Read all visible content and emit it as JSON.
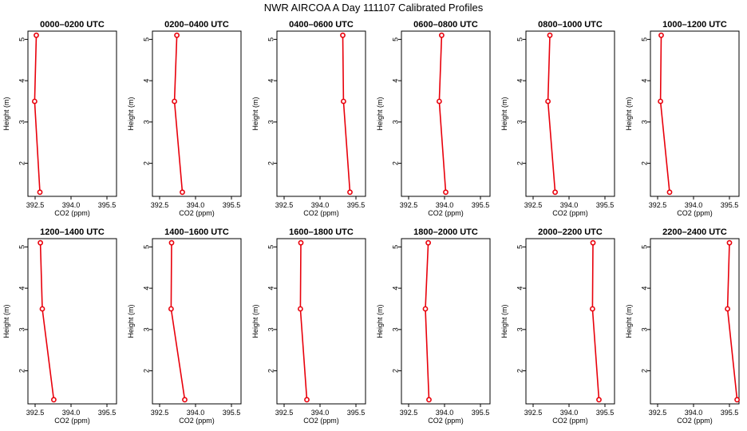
{
  "title": "NWR AIRCOA A  Day 111107  Calibrated Profiles",
  "style": {
    "line_color": "#e8000b",
    "axis_color": "#000000"
  },
  "chart_data": [
    {
      "type": "line",
      "title": "0000–0200 UTC",
      "xlabel": "CO2 (ppm)",
      "ylabel": "Height (m)",
      "xlim": [
        392.2,
        395.9
      ],
      "ylim": [
        1.2,
        5.2
      ],
      "xticks": [
        "392.5",
        "394.0",
        "395.5"
      ],
      "yticks": [
        "2",
        "3",
        "4",
        "5"
      ],
      "grid": false,
      "series": [
        {
          "x": [
            392.55,
            392.48,
            392.7
          ],
          "y": [
            5.1,
            3.5,
            1.3
          ]
        }
      ]
    },
    {
      "type": "line",
      "title": "0200–0400 UTC",
      "xlabel": "CO2 (ppm)",
      "ylabel": "Height (m)",
      "xlim": [
        392.2,
        395.9
      ],
      "ylim": [
        1.2,
        5.2
      ],
      "xticks": [
        "392.5",
        "394.0",
        "395.5"
      ],
      "yticks": [
        "2",
        "3",
        "4",
        "5"
      ],
      "grid": false,
      "series": [
        {
          "x": [
            393.22,
            393.12,
            393.45
          ],
          "y": [
            5.1,
            3.5,
            1.3
          ]
        }
      ]
    },
    {
      "type": "line",
      "title": "0400–0600 UTC",
      "xlabel": "CO2 (ppm)",
      "ylabel": "Height (m)",
      "xlim": [
        392.2,
        395.9
      ],
      "ylim": [
        1.2,
        5.2
      ],
      "xticks": [
        "392.5",
        "394.0",
        "395.5"
      ],
      "yticks": [
        "2",
        "3",
        "4",
        "5"
      ],
      "grid": false,
      "series": [
        {
          "x": [
            394.95,
            394.98,
            395.25
          ],
          "y": [
            5.1,
            3.5,
            1.3
          ]
        }
      ]
    },
    {
      "type": "line",
      "title": "0600–0800 UTC",
      "xlabel": "CO2 (ppm)",
      "ylabel": "Height (m)",
      "xlim": [
        392.2,
        395.9
      ],
      "ylim": [
        1.2,
        5.2
      ],
      "xticks": [
        "392.5",
        "394.0",
        "395.5"
      ],
      "yticks": [
        "2",
        "3",
        "4",
        "5"
      ],
      "grid": false,
      "series": [
        {
          "x": [
            393.88,
            393.78,
            394.05
          ],
          "y": [
            5.1,
            3.5,
            1.3
          ]
        }
      ]
    },
    {
      "type": "line",
      "title": "0800–1000 UTC",
      "xlabel": "CO2 (ppm)",
      "ylabel": "Height (m)",
      "xlim": [
        392.2,
        395.9
      ],
      "ylim": [
        1.2,
        5.2
      ],
      "xticks": [
        "392.5",
        "394.0",
        "395.5"
      ],
      "yticks": [
        "2",
        "3",
        "4",
        "5"
      ],
      "grid": false,
      "series": [
        {
          "x": [
            393.2,
            393.12,
            393.42
          ],
          "y": [
            5.1,
            3.5,
            1.3
          ]
        }
      ]
    },
    {
      "type": "line",
      "title": "1000–1200 UTC",
      "xlabel": "CO2 (ppm)",
      "ylabel": "Height (m)",
      "xlim": [
        392.2,
        395.9
      ],
      "ylim": [
        1.2,
        5.2
      ],
      "xticks": [
        "392.5",
        "394.0",
        "395.5"
      ],
      "yticks": [
        "2",
        "3",
        "4",
        "5"
      ],
      "grid": false,
      "series": [
        {
          "x": [
            392.65,
            392.62,
            393.0
          ],
          "y": [
            5.1,
            3.5,
            1.3
          ]
        }
      ]
    },
    {
      "type": "line",
      "title": "1200–1400 UTC",
      "xlabel": "CO2 (ppm)",
      "ylabel": "Height (m)",
      "xlim": [
        392.2,
        395.9
      ],
      "ylim": [
        1.2,
        5.2
      ],
      "xticks": [
        "392.5",
        "394.0",
        "395.5"
      ],
      "yticks": [
        "2",
        "3",
        "4",
        "5"
      ],
      "grid": false,
      "series": [
        {
          "x": [
            392.72,
            392.8,
            393.28
          ],
          "y": [
            5.1,
            3.5,
            1.3
          ]
        }
      ]
    },
    {
      "type": "line",
      "title": "1400–1600 UTC",
      "xlabel": "CO2 (ppm)",
      "ylabel": "Height (m)",
      "xlim": [
        392.2,
        395.9
      ],
      "ylim": [
        1.2,
        5.2
      ],
      "xticks": [
        "392.5",
        "394.0",
        "395.5"
      ],
      "yticks": [
        "2",
        "3",
        "4",
        "5"
      ],
      "grid": false,
      "series": [
        {
          "x": [
            393.0,
            392.98,
            393.55
          ],
          "y": [
            5.1,
            3.5,
            1.3
          ]
        }
      ]
    },
    {
      "type": "line",
      "title": "1600–1800 UTC",
      "xlabel": "CO2 (ppm)",
      "ylabel": "Height (m)",
      "xlim": [
        392.2,
        395.9
      ],
      "ylim": [
        1.2,
        5.2
      ],
      "xticks": [
        "392.5",
        "394.0",
        "395.5"
      ],
      "yticks": [
        "2",
        "3",
        "4",
        "5"
      ],
      "grid": false,
      "series": [
        {
          "x": [
            393.2,
            393.18,
            393.45
          ],
          "y": [
            5.1,
            3.5,
            1.3
          ]
        }
      ]
    },
    {
      "type": "line",
      "title": "1800–2000 UTC",
      "xlabel": "CO2 (ppm)",
      "ylabel": "Height (m)",
      "xlim": [
        392.2,
        395.9
      ],
      "ylim": [
        1.2,
        5.2
      ],
      "xticks": [
        "392.5",
        "394.0",
        "395.5"
      ],
      "yticks": [
        "2",
        "3",
        "4",
        "5"
      ],
      "grid": false,
      "series": [
        {
          "x": [
            393.32,
            393.2,
            393.35
          ],
          "y": [
            5.1,
            3.5,
            1.3
          ]
        }
      ]
    },
    {
      "type": "line",
      "title": "2000–2200 UTC",
      "xlabel": "CO2 (ppm)",
      "ylabel": "Height (m)",
      "xlim": [
        392.2,
        395.9
      ],
      "ylim": [
        1.2,
        5.2
      ],
      "xticks": [
        "392.5",
        "394.0",
        "395.5"
      ],
      "yticks": [
        "2",
        "3",
        "4",
        "5"
      ],
      "grid": false,
      "series": [
        {
          "x": [
            395.0,
            394.98,
            395.25
          ],
          "y": [
            5.1,
            3.5,
            1.3
          ]
        }
      ]
    },
    {
      "type": "line",
      "title": "2200–2400 UTC",
      "xlabel": "CO2 (ppm)",
      "ylabel": "Height (m)",
      "xlim": [
        392.2,
        395.9
      ],
      "ylim": [
        1.2,
        5.2
      ],
      "xticks": [
        "392.5",
        "394.0",
        "395.5"
      ],
      "yticks": [
        "2",
        "3",
        "4",
        "5"
      ],
      "grid": false,
      "series": [
        {
          "x": [
            395.5,
            395.42,
            395.82
          ],
          "y": [
            5.1,
            3.5,
            1.3
          ]
        }
      ]
    }
  ]
}
